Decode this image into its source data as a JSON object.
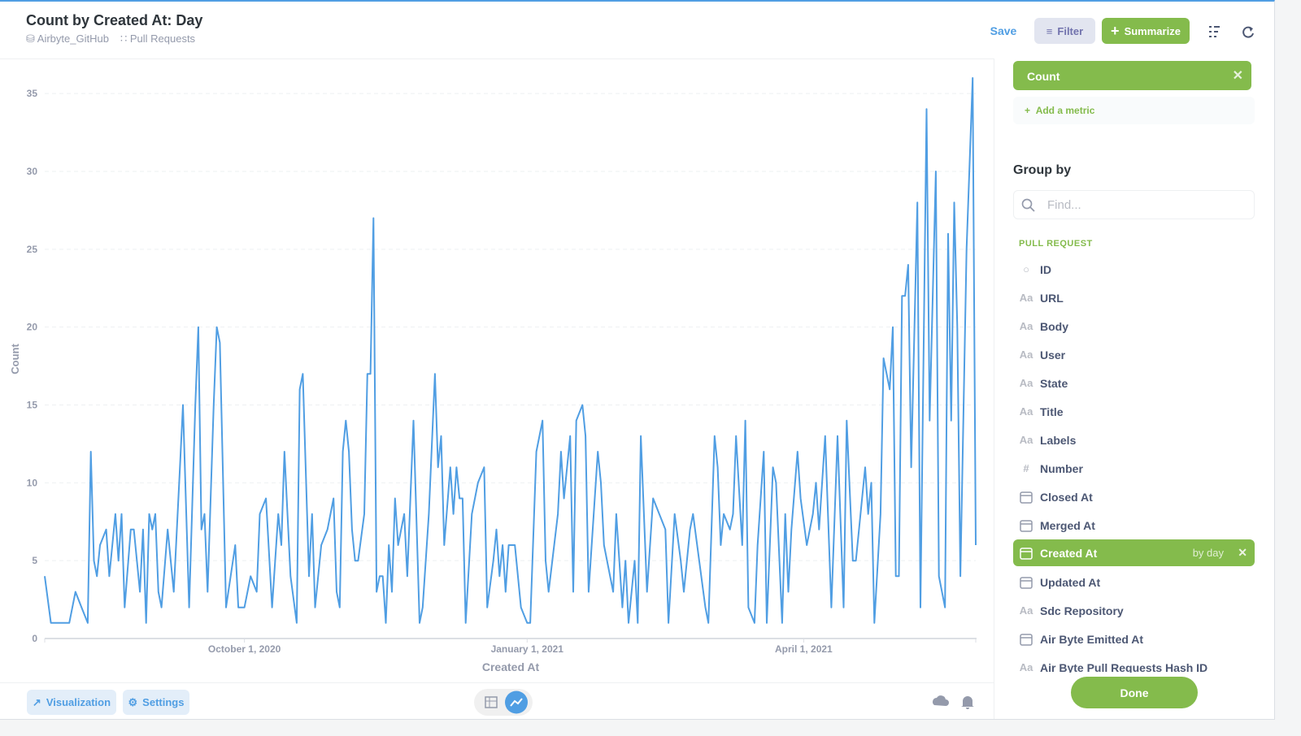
{
  "header": {
    "title": "Count by Created At: Day",
    "database": "Airbyte_GitHub",
    "table": "Pull Requests",
    "save": "Save",
    "filter": "Filter",
    "summarize": "Summarize"
  },
  "chart_data": {
    "type": "line",
    "x_label": "Created At",
    "y_label": "Count",
    "color": "#509ee3",
    "grid": true,
    "xlim": [
      "2020-07-28",
      "2021-05-27"
    ],
    "xticks": [
      {
        "value": "2020-10-01",
        "label": "October 1, 2020"
      },
      {
        "value": "2021-01-01",
        "label": "January 1, 2021"
      },
      {
        "value": "2021-04-01",
        "label": "April 1, 2021"
      }
    ],
    "ylim": [
      0,
      36
    ],
    "yticks": [
      0,
      5,
      10,
      15,
      20,
      25,
      30,
      35
    ],
    "x": [
      "2020-07-28",
      "2020-07-30",
      "2020-08-01",
      "2020-08-03",
      "2020-08-05",
      "2020-08-07",
      "2020-08-09",
      "2020-08-11",
      "2020-08-12",
      "2020-08-13",
      "2020-08-14",
      "2020-08-15",
      "2020-08-17",
      "2020-08-18",
      "2020-08-20",
      "2020-08-21",
      "2020-08-22",
      "2020-08-23",
      "2020-08-25",
      "2020-08-26",
      "2020-08-28",
      "2020-08-29",
      "2020-08-30",
      "2020-08-31",
      "2020-09-01",
      "2020-09-02",
      "2020-09-03",
      "2020-09-04",
      "2020-09-06",
      "2020-09-08",
      "2020-09-10",
      "2020-09-11",
      "2020-09-13",
      "2020-09-15",
      "2020-09-16",
      "2020-09-17",
      "2020-09-18",
      "2020-09-19",
      "2020-09-21",
      "2020-09-22",
      "2020-09-23",
      "2020-09-25",
      "2020-09-28",
      "2020-09-29",
      "2020-10-01",
      "2020-10-03",
      "2020-10-05",
      "2020-10-06",
      "2020-10-08",
      "2020-10-10",
      "2020-10-12",
      "2020-10-13",
      "2020-10-14",
      "2020-10-16",
      "2020-10-18",
      "2020-10-19",
      "2020-10-20",
      "2020-10-22",
      "2020-10-23",
      "2020-10-24",
      "2020-10-26",
      "2020-10-28",
      "2020-10-30",
      "2020-10-31",
      "2020-11-01",
      "2020-11-02",
      "2020-11-03",
      "2020-11-04",
      "2020-11-05",
      "2020-11-06",
      "2020-11-07",
      "2020-11-09",
      "2020-11-10",
      "2020-11-11",
      "2020-11-12",
      "2020-11-13",
      "2020-11-14",
      "2020-11-15",
      "2020-11-16",
      "2020-11-17",
      "2020-11-18",
      "2020-11-19",
      "2020-11-20",
      "2020-11-22",
      "2020-11-23",
      "2020-11-25",
      "2020-11-27",
      "2020-11-28",
      "2020-11-30",
      "2020-12-02",
      "2020-12-03",
      "2020-12-04",
      "2020-12-05",
      "2020-12-07",
      "2020-12-08",
      "2020-12-09",
      "2020-12-10",
      "2020-12-11",
      "2020-12-12",
      "2020-12-14",
      "2020-12-16",
      "2020-12-18",
      "2020-12-19",
      "2020-12-21",
      "2020-12-22",
      "2020-12-23",
      "2020-12-24",
      "2020-12-25",
      "2020-12-26",
      "2020-12-28",
      "2020-12-30",
      "2021-01-01",
      "2021-01-02",
      "2021-01-04",
      "2021-01-06",
      "2021-01-07",
      "2021-01-08",
      "2021-01-11",
      "2021-01-12",
      "2021-01-13",
      "2021-01-15",
      "2021-01-16",
      "2021-01-17",
      "2021-01-19",
      "2021-01-20",
      "2021-01-21",
      "2021-01-24",
      "2021-01-25",
      "2021-01-26",
      "2021-01-28",
      "2021-01-29",
      "2021-01-30",
      "2021-02-01",
      "2021-02-02",
      "2021-02-03",
      "2021-02-05",
      "2021-02-06",
      "2021-02-07",
      "2021-02-09",
      "2021-02-11",
      "2021-02-13",
      "2021-02-15",
      "2021-02-16",
      "2021-02-18",
      "2021-02-20",
      "2021-02-21",
      "2021-02-23",
      "2021-02-24",
      "2021-02-26",
      "2021-02-28",
      "2021-03-01",
      "2021-03-03",
      "2021-03-04",
      "2021-03-05",
      "2021-03-06",
      "2021-03-08",
      "2021-03-09",
      "2021-03-10",
      "2021-03-12",
      "2021-03-13",
      "2021-03-14",
      "2021-03-16",
      "2021-03-17",
      "2021-03-19",
      "2021-03-20",
      "2021-03-22",
      "2021-03-23",
      "2021-03-25",
      "2021-03-26",
      "2021-03-27",
      "2021-03-28",
      "2021-03-30",
      "2021-03-31",
      "2021-04-02",
      "2021-04-04",
      "2021-04-05",
      "2021-04-06",
      "2021-04-08",
      "2021-04-10",
      "2021-04-12",
      "2021-04-14",
      "2021-04-15",
      "2021-04-17",
      "2021-04-18",
      "2021-04-20",
      "2021-04-21",
      "2021-04-22",
      "2021-04-23",
      "2021-04-24",
      "2021-04-26",
      "2021-04-27",
      "2021-04-29",
      "2021-04-30",
      "2021-05-01",
      "2021-05-02",
      "2021-05-03",
      "2021-05-04",
      "2021-05-05",
      "2021-05-06",
      "2021-05-08",
      "2021-05-09",
      "2021-05-11",
      "2021-05-12",
      "2021-05-14",
      "2021-05-15",
      "2021-05-17",
      "2021-05-18",
      "2021-05-19",
      "2021-05-20",
      "2021-05-21",
      "2021-05-22",
      "2021-05-24",
      "2021-05-26",
      "2021-05-27"
    ],
    "values": [
      4,
      1,
      1,
      1,
      1,
      3,
      2,
      1,
      12,
      5,
      4,
      6,
      7,
      4,
      8,
      5,
      8,
      2,
      7,
      7,
      3,
      7,
      1,
      8,
      7,
      8,
      3,
      2,
      7,
      3,
      11,
      15,
      2,
      15,
      20,
      7,
      8,
      3,
      15,
      20,
      19,
      2,
      6,
      2,
      2,
      4,
      3,
      8,
      9,
      2,
      8,
      6,
      12,
      4,
      1,
      16,
      17,
      4,
      8,
      2,
      6,
      7,
      9,
      3,
      2,
      12,
      14,
      12,
      7,
      5,
      5,
      8,
      17,
      17,
      27,
      3,
      4,
      4,
      1,
      6,
      3,
      9,
      6,
      8,
      4,
      14,
      1,
      2,
      8,
      17,
      11,
      13,
      6,
      11,
      8,
      11,
      9,
      9,
      1,
      8,
      10,
      11,
      2,
      5,
      7,
      4,
      6,
      3,
      6,
      6,
      2,
      1,
      1,
      12,
      14,
      5,
      3,
      8,
      12,
      9,
      13,
      3,
      14,
      15,
      13,
      3,
      12,
      10,
      6,
      4,
      3,
      8,
      2,
      5,
      1,
      5,
      1,
      13,
      3,
      9,
      8,
      7,
      1,
      8,
      5,
      3,
      7,
      8,
      5,
      2,
      1,
      13,
      11,
      6,
      8,
      7,
      8,
      13,
      6,
      14,
      2,
      1,
      6,
      12,
      1,
      11,
      10,
      1,
      8,
      3,
      7,
      12,
      9,
      6,
      8,
      10,
      7,
      13,
      2,
      13,
      2,
      14,
      5,
      5,
      9,
      11,
      8,
      10,
      1,
      8,
      18,
      16,
      20,
      4,
      4,
      22,
      22,
      24,
      11,
      28,
      2,
      34,
      14,
      30,
      4,
      2,
      26,
      14,
      28,
      20,
      4,
      25,
      36,
      6
    ]
  },
  "footer": {
    "visualization": "Visualization",
    "settings": "Settings"
  },
  "sidebar": {
    "metric": "Count",
    "add_metric": "Add a metric",
    "group_by": "Group by",
    "search": "Find...",
    "section": "PULL REQUEST",
    "text_icon": "Aa",
    "number_icon": "#",
    "granularity": "by day",
    "done": "Done",
    "fields": [
      "ID",
      "URL",
      "Body",
      "User",
      "State",
      "Title",
      "Labels",
      "Number",
      "Closed At",
      "Merged At",
      "Created At",
      "Updated At",
      "Sdc Repository",
      "Air Byte Emitted At",
      "Air Byte Pull Requests Hash ID"
    ]
  }
}
